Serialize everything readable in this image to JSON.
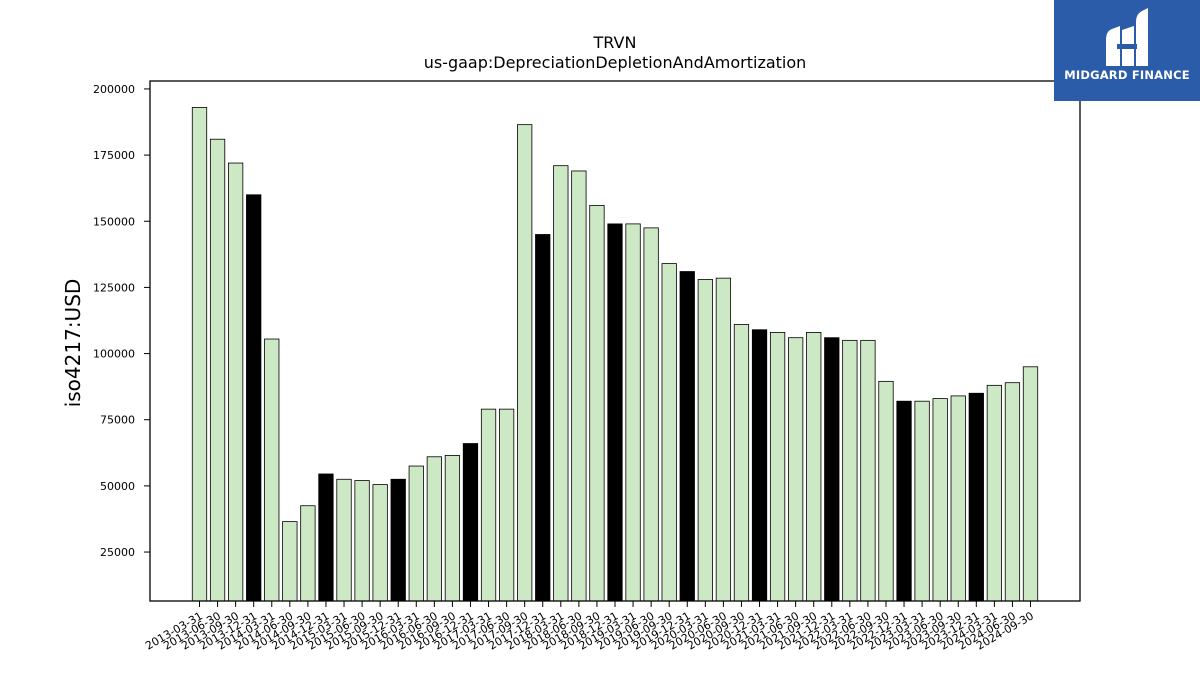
{
  "logo": {
    "text": "MIDGARD FINANCE"
  },
  "chart_data": {
    "type": "bar",
    "title": "TRVN",
    "subtitle": "us-gaap:DepreciationDepletionAndAmortization",
    "xlabel": "",
    "ylabel": "iso4217:USD",
    "ylim": [
      6500,
      203000
    ],
    "yticks": [
      25000,
      50000,
      75000,
      100000,
      125000,
      150000,
      175000,
      200000
    ],
    "grid": false,
    "colors": {
      "normal": "#cde8c4",
      "highlight": "#000000",
      "edge": "#000000"
    },
    "categories": [
      "2013-03-31",
      "2013-06-30",
      "2013-09-30",
      "2013-12-31",
      "2014-03-31",
      "2014-06-30",
      "2014-09-30",
      "2014-12-31",
      "2015-03-31",
      "2015-06-30",
      "2015-09-30",
      "2015-12-31",
      "2016-03-31",
      "2016-06-30",
      "2016-09-30",
      "2016-12-31",
      "2017-03-31",
      "2017-06-30",
      "2017-09-30",
      "2017-12-31",
      "2018-03-31",
      "2018-06-30",
      "2018-09-30",
      "2018-12-31",
      "2019-03-31",
      "2019-06-30",
      "2019-09-30",
      "2019-12-31",
      "2020-03-31",
      "2020-06-30",
      "2020-09-30",
      "2020-12-31",
      "2021-03-31",
      "2021-06-30",
      "2021-09-30",
      "2021-12-31",
      "2022-03-31",
      "2022-06-30",
      "2022-09-30",
      "2022-12-31",
      "2023-03-31",
      "2023-06-30",
      "2023-09-30",
      "2023-12-31",
      "2024-03-31",
      "2024-06-30",
      "2024-09-30"
    ],
    "values": [
      193000,
      181000,
      172000,
      160000,
      105500,
      36500,
      42500,
      54500,
      52500,
      52000,
      50500,
      52500,
      57500,
      61000,
      61500,
      66000,
      79000,
      79000,
      186500,
      145000,
      171000,
      169000,
      156000,
      149000,
      149000,
      147500,
      134000,
      131000,
      128000,
      128500,
      111000,
      109000,
      108000,
      106000,
      108000,
      106000,
      105000,
      105000,
      89500,
      82000,
      82000,
      83000,
      84000,
      85000,
      88000,
      89000,
      95000
    ],
    "highlighted": [
      3,
      7,
      11,
      15,
      19,
      23,
      27,
      31,
      35,
      39,
      43
    ]
  }
}
